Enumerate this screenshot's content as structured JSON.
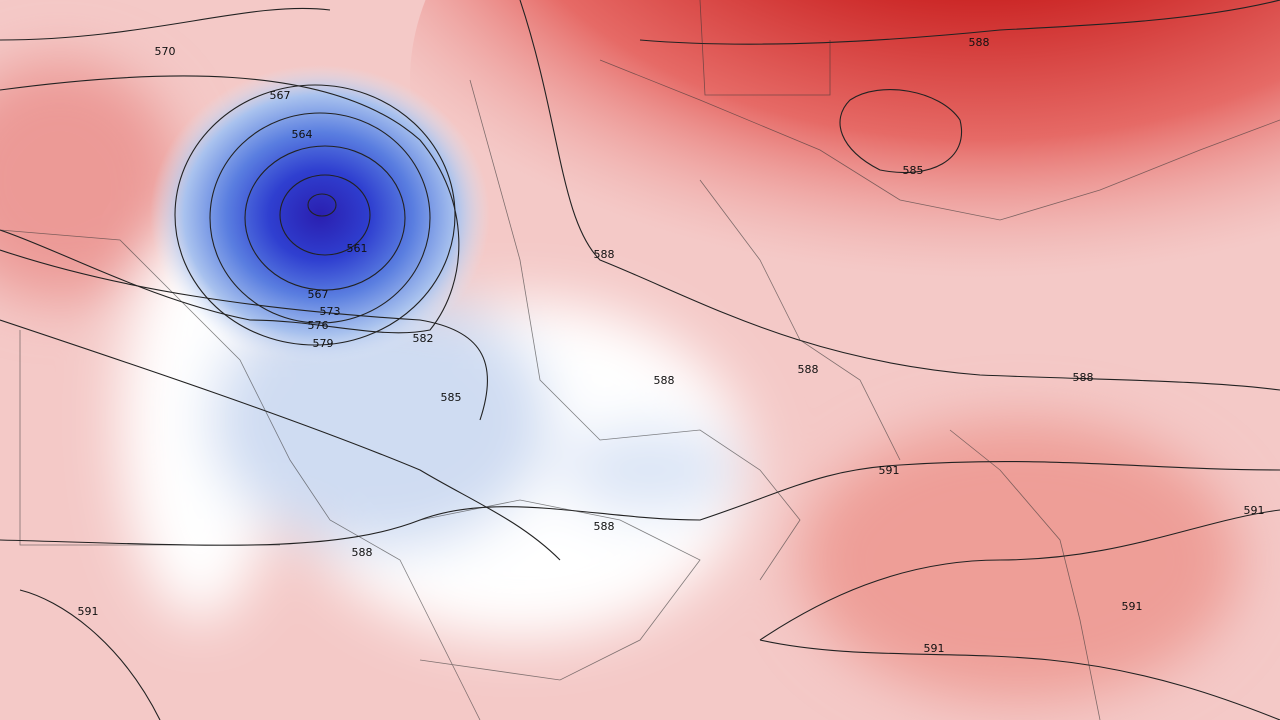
{
  "map": {
    "contour_labels": [
      "570",
      "567",
      "564",
      "561",
      "567",
      "573",
      "576",
      "579",
      "582",
      "585",
      "588",
      "588",
      "588",
      "588",
      "588",
      "588",
      "588",
      "585",
      "591",
      "591",
      "591",
      "591",
      "591"
    ]
  }
}
